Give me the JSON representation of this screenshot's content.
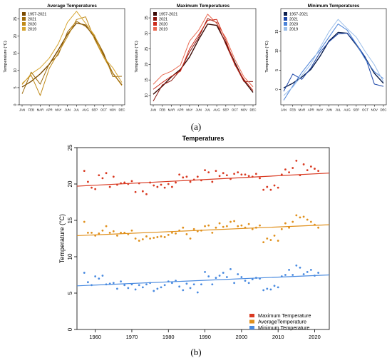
{
  "captions": {
    "a": "(a)",
    "b": "(b)"
  },
  "chart_data": [
    {
      "type": "line",
      "title": "Average Temperatures",
      "ylabel": "Temperature (°C)",
      "categories": [
        "JAN",
        "FEB",
        "MAR",
        "APR",
        "MAY",
        "JUN",
        "JUL",
        "AUG",
        "SEP",
        "OCT",
        "NOV",
        "DEC"
      ],
      "ylim": [
        0,
        28
      ],
      "yticks": [
        0,
        5,
        10,
        15,
        20,
        25
      ],
      "legend_position": "top-left",
      "series": [
        {
          "name": "1957-2021",
          "color": "#7a4a00",
          "values": [
            5.2,
            6.8,
            9.0,
            11.8,
            16.0,
            20.5,
            23.8,
            23.2,
            19.5,
            14.5,
            9.2,
            5.8
          ]
        },
        {
          "name": "2021",
          "color": "#9c6a0c",
          "values": [
            3.2,
            9.5,
            6.0,
            12.0,
            14.6,
            21.2,
            24.3,
            22.8,
            20.0,
            15.0,
            8.2,
            8.3
          ]
        },
        {
          "name": "2020",
          "color": "#c08a18",
          "values": [
            6.2,
            8.6,
            2.7,
            10.6,
            15.2,
            19.8,
            24.8,
            25.6,
            19.0,
            13.8,
            9.2,
            5.6
          ]
        },
        {
          "name": "2019",
          "color": "#d6a531",
          "values": [
            5.9,
            9.0,
            10.8,
            13.6,
            17.8,
            24.0,
            27.2,
            23.7,
            20.2,
            13.8,
            10.8,
            6.5
          ]
        }
      ]
    },
    {
      "type": "line",
      "title": "Maximum Temperatures",
      "ylabel": "Temperature (°C)",
      "categories": [
        "JAN",
        "FEB",
        "MAR",
        "APR",
        "MAY",
        "JUN",
        "JUL",
        "AUG",
        "SEP",
        "OCT",
        "NOV",
        "DEC"
      ],
      "ylim": [
        7,
        38
      ],
      "yticks": [
        10,
        15,
        20,
        25,
        30,
        35
      ],
      "legend_position": "top-left",
      "series": [
        {
          "name": "1957-2021",
          "color": "#3b0a06",
          "values": [
            10.4,
            13.0,
            16.0,
            18.4,
            22.4,
            28.0,
            33.0,
            32.6,
            27.0,
            20.6,
            14.8,
            11.0
          ]
        },
        {
          "name": "2021",
          "color": "#8b150e",
          "values": [
            8.2,
            13.4,
            14.8,
            18.2,
            24.0,
            28.7,
            34.8,
            33.5,
            26.5,
            20.0,
            14.5,
            14.5
          ]
        },
        {
          "name": "2020",
          "color": "#cc2a1a",
          "values": [
            12.0,
            14.2,
            16.2,
            17.8,
            25.0,
            29.5,
            34.2,
            34.5,
            27.8,
            19.8,
            15.2,
            11.6
          ]
        },
        {
          "name": "2019",
          "color": "#ea6a52",
          "values": [
            13.6,
            16.6,
            17.8,
            19.8,
            27.5,
            31.0,
            36.2,
            33.2,
            28.6,
            21.6,
            16.0,
            12.8
          ]
        }
      ]
    },
    {
      "type": "line",
      "title": "Minimum Temperatures",
      "ylabel": "Temperature (°C)",
      "categories": [
        "JAN",
        "FEB",
        "MAR",
        "APR",
        "MAY",
        "JUN",
        "JUL",
        "AUG",
        "SEP",
        "OCT",
        "NOV",
        "DEC"
      ],
      "ylim": [
        -4,
        21
      ],
      "yticks": [
        0,
        5,
        10,
        15
      ],
      "legend_position": "top-left",
      "series": [
        {
          "name": "1957-2021",
          "color": "#0c1f4e",
          "values": [
            0.4,
            1.6,
            3.2,
            5.2,
            8.6,
            12.6,
            14.8,
            14.6,
            11.6,
            8.2,
            4.2,
            1.6
          ]
        },
        {
          "name": "2021",
          "color": "#1c46a8",
          "values": [
            -0.5,
            4.0,
            2.6,
            5.6,
            9.6,
            12.4,
            14.4,
            14.6,
            11.8,
            8.4,
            1.4,
            0.8
          ]
        },
        {
          "name": "2020",
          "color": "#4a82d8",
          "values": [
            -2.8,
            0.9,
            4.4,
            7.4,
            10.2,
            13.6,
            17.0,
            15.4,
            11.8,
            7.8,
            4.6,
            2.8
          ]
        },
        {
          "name": "2019",
          "color": "#9cbfea",
          "values": [
            -1.6,
            0.6,
            3.6,
            6.6,
            10.8,
            15.0,
            18.2,
            15.8,
            13.6,
            9.8,
            6.4,
            2.0
          ]
        }
      ]
    },
    {
      "type": "scatter",
      "title": "Temperatures",
      "ylabel": "Temperature (°C)",
      "xlim": [
        1955,
        2024
      ],
      "ylim": [
        0,
        25
      ],
      "xticks": [
        1960,
        1970,
        1980,
        1990,
        2000,
        2010,
        2020
      ],
      "yticks": [
        0,
        5,
        10,
        15,
        20,
        25
      ],
      "legend_position": "bottom-right",
      "x": [
        1957,
        1958,
        1959,
        1960,
        1961,
        1962,
        1963,
        1964,
        1965,
        1966,
        1967,
        1968,
        1969,
        1970,
        1971,
        1972,
        1973,
        1974,
        1975,
        1976,
        1977,
        1978,
        1979,
        1980,
        1981,
        1982,
        1983,
        1984,
        1985,
        1986,
        1987,
        1988,
        1989,
        1990,
        1991,
        1992,
        1993,
        1994,
        1995,
        1996,
        1997,
        1998,
        1999,
        2000,
        2001,
        2002,
        2003,
        2004,
        2005,
        2006,
        2007,
        2008,
        2009,
        2010,
        2011,
        2012,
        2013,
        2014,
        2015,
        2016,
        2017,
        2018,
        2019,
        2020,
        2021
      ],
      "series": [
        {
          "name": "Maximum Temperature",
          "color": "#d93a22",
          "values": [
            21.8,
            20.3,
            19.5,
            19.3,
            21.2,
            20.8,
            21.5,
            19.6,
            21.0,
            19.9,
            20.1,
            20.2,
            20.0,
            20.4,
            18.9,
            20.1,
            19.0,
            18.6,
            20.2,
            19.8,
            19.6,
            19.9,
            19.5,
            20.0,
            19.6,
            20.2,
            21.3,
            20.9,
            21.0,
            20.3,
            20.6,
            21.0,
            20.5,
            21.9,
            21.6,
            20.3,
            21.8,
            21.1,
            21.5,
            21.2,
            20.7,
            21.4,
            21.6,
            21.3,
            21.3,
            21.1,
            21.0,
            21.4,
            20.8,
            19.2,
            19.6,
            19.2,
            19.8,
            19.5,
            21.3,
            22.0,
            21.6,
            22.2,
            23.2,
            21.2,
            22.7,
            21.9,
            22.4,
            22.1,
            21.8
          ]
        },
        {
          "name": "AverageTemperature",
          "color": "#e0901c",
          "values": [
            14.8,
            13.3,
            13.3,
            12.9,
            13.2,
            13.6,
            14.2,
            13.3,
            13.5,
            12.9,
            13.3,
            13.3,
            13.1,
            13.6,
            12.5,
            12.2,
            12.4,
            12.8,
            12.5,
            12.6,
            12.7,
            12.8,
            12.7,
            13.0,
            13.3,
            13.2,
            13.6,
            14.0,
            13.1,
            12.5,
            13.8,
            13.5,
            13.6,
            14.2,
            14.3,
            13.3,
            14.0,
            14.6,
            14.1,
            14.2,
            14.8,
            14.9,
            14.2,
            14.3,
            14.0,
            14.5,
            13.8,
            14.0,
            14.3,
            12.0,
            12.5,
            12.3,
            12.9,
            12.2,
            13.8,
            14.6,
            14.0,
            14.8,
            15.7,
            15.4,
            15.5,
            15.1,
            14.8,
            14.4,
            14.0
          ]
        },
        {
          "name": "Minimum Temperature",
          "color": "#4a8be0",
          "values": [
            7.8,
            6.5,
            6.1,
            7.3,
            7.0,
            7.4,
            6.2,
            6.3,
            6.4,
            5.6,
            6.6,
            6.1,
            5.7,
            6.2,
            5.5,
            6.1,
            5.8,
            6.2,
            6.4,
            5.3,
            5.6,
            5.8,
            6.1,
            6.6,
            6.4,
            6.7,
            5.9,
            5.4,
            6.3,
            5.7,
            6.2,
            5.1,
            6.2,
            7.9,
            7.3,
            6.2,
            7.1,
            7.4,
            7.8,
            7.2,
            8.3,
            6.4,
            7.6,
            7.2,
            6.7,
            6.4,
            6.9,
            7.1,
            7.0,
            5.4,
            5.6,
            5.5,
            6.0,
            5.8,
            7.3,
            7.5,
            8.2,
            7.5,
            8.8,
            8.5,
            7.6,
            7.9,
            8.2,
            7.4,
            7.8
          ]
        }
      ],
      "trends": [
        {
          "name": "Maximum Temperature",
          "start": [
            1955,
            19.7
          ],
          "end": [
            2024,
            21.5
          ]
        },
        {
          "name": "AverageTemperature",
          "start": [
            1955,
            12.9
          ],
          "end": [
            2024,
            14.4
          ]
        },
        {
          "name": "Minimum Temperature",
          "start": [
            1955,
            6.0
          ],
          "end": [
            2024,
            7.5
          ]
        }
      ]
    }
  ]
}
